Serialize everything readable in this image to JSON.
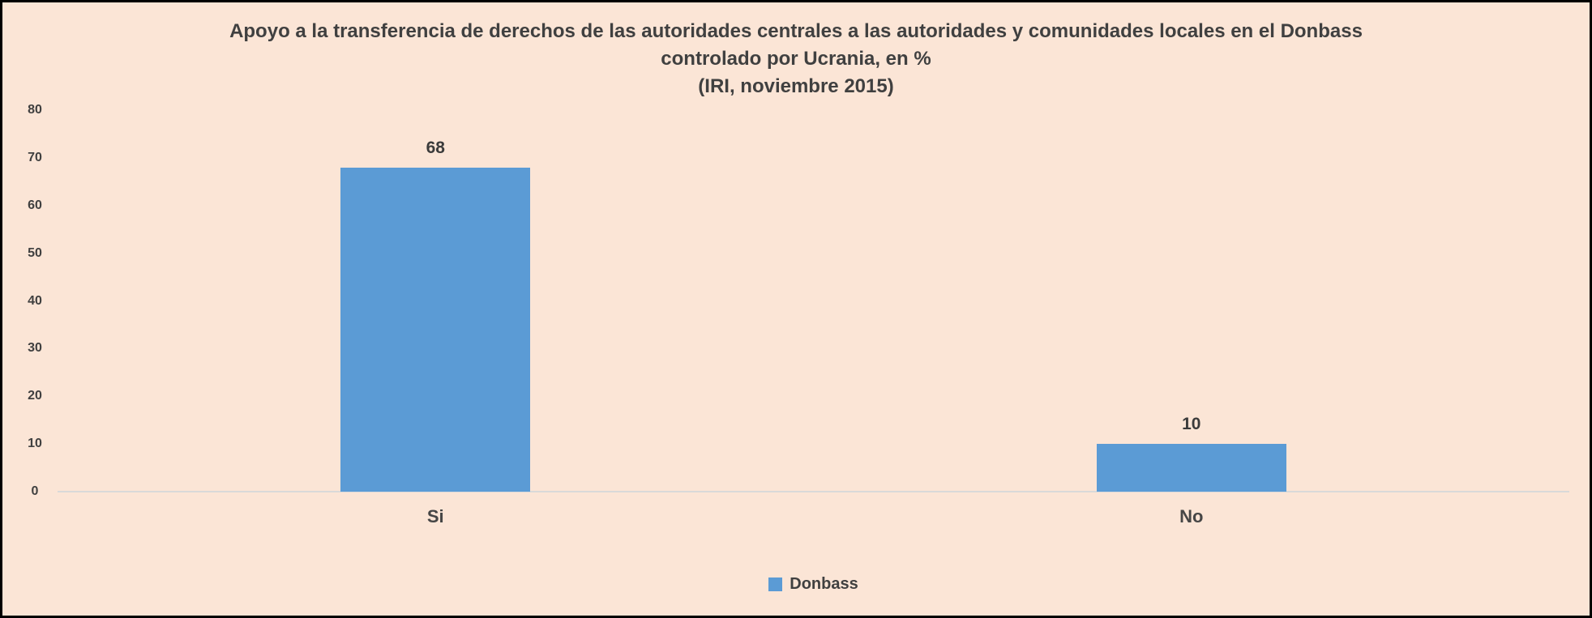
{
  "frame": {
    "background": "#fbe5d6",
    "border_color": "#000000"
  },
  "chart_data": {
    "type": "bar",
    "title_lines": [
      "Apoyo a la transferencia de derechos de las autoridades centrales a las autoridades y comunidades locales en el Donbass",
      "controlado por Ucrania, en %",
      "(IRI, noviembre 2015)"
    ],
    "categories": [
      "Si",
      "No"
    ],
    "series": [
      {
        "name": "Donbass",
        "values": [
          68,
          10
        ],
        "color": "#5b9bd5"
      }
    ],
    "xlabel": "",
    "ylabel": "",
    "ylim": [
      0,
      80
    ],
    "ytick_step": 10,
    "grid": false,
    "data_labels": true,
    "legend_position": "bottom",
    "colors": {
      "background": "#fbe5d6",
      "bar": "#5b9bd5",
      "axis_line": "#d9d9d9",
      "text": "#404040"
    }
  }
}
